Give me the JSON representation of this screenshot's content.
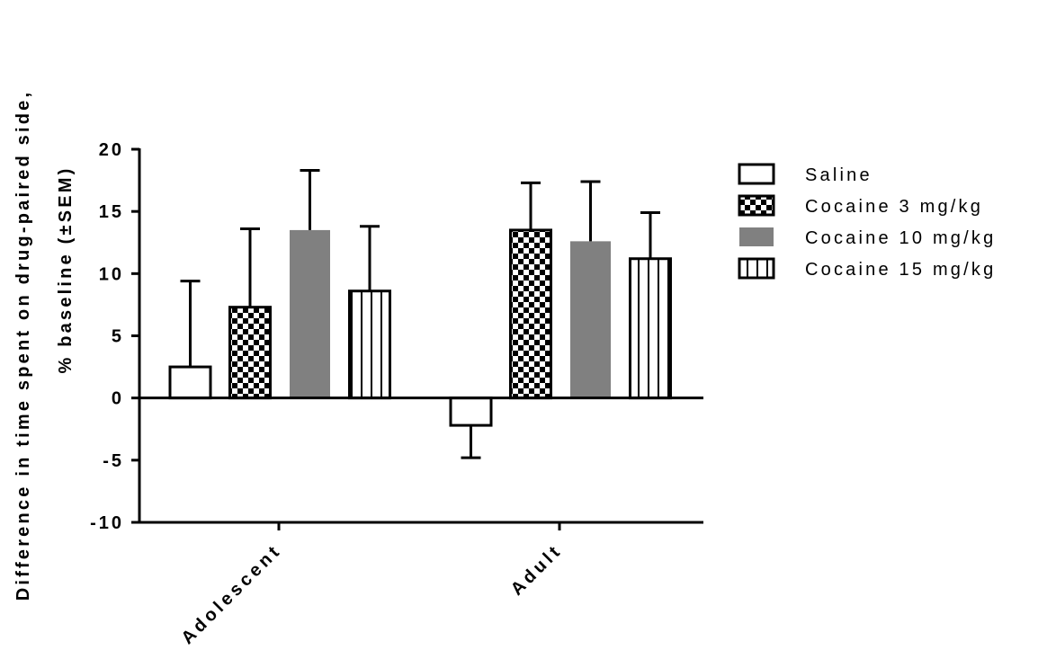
{
  "chart_data": {
    "type": "bar",
    "ylabel_line1": "Difference in time spent on drug-paired side,",
    "ylabel_line2": "% baseline (±SEM)",
    "xlabel": "",
    "categories": [
      "Adolescent",
      "Adult"
    ],
    "ylim": [
      -10,
      20
    ],
    "yticks": [
      -10,
      -5,
      0,
      5,
      10,
      15,
      20
    ],
    "error_bars": "SEM",
    "series": [
      {
        "name": "Saline",
        "values": [
          2.5,
          -2.2
        ],
        "errors": [
          6.9,
          2.6
        ],
        "fill": "white",
        "color": "#ffffff"
      },
      {
        "name": "Cocaine 3 mg/kg",
        "values": [
          7.3,
          13.5
        ],
        "errors": [
          6.3,
          3.8
        ],
        "fill": "checkerboard",
        "color": "#000000"
      },
      {
        "name": "Cocaine 10 mg/kg",
        "values": [
          13.5,
          12.6
        ],
        "errors": [
          4.8,
          4.8
        ],
        "fill": "solid-gray",
        "color": "#808080"
      },
      {
        "name": "Cocaine 15 mg/kg",
        "values": [
          8.6,
          11.2
        ],
        "errors": [
          5.2,
          3.7
        ],
        "fill": "vertical-lines",
        "color": "#000000"
      }
    ],
    "legend_position": "right",
    "grid": false
  }
}
